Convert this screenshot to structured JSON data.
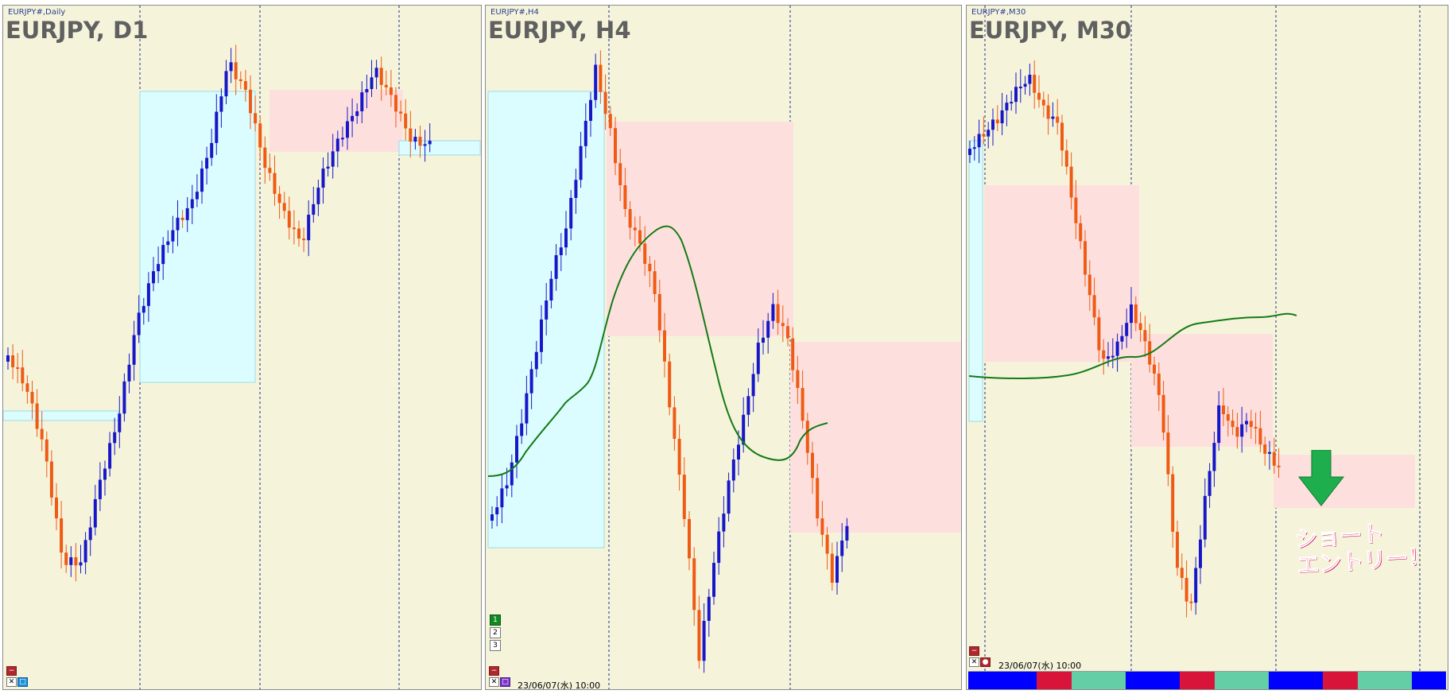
{
  "panels": [
    {
      "tiny_title": "EURJPY#,Daily",
      "big_title": "EURJPY, D1",
      "timestamp": "",
      "buttons": [
        "−",
        "✕",
        "□"
      ]
    },
    {
      "tiny_title": "EURJPY#,H4",
      "big_title": "EURJPY, H4",
      "timestamp": "23/06/07(水) 10:00",
      "buttons": [
        "−",
        "✕",
        "□"
      ],
      "side_buttons": [
        "1",
        "2",
        "3"
      ]
    },
    {
      "tiny_title": "EURJPY#,M30",
      "big_title": "EURJPY, M30",
      "timestamp": "23/06/07(水) 10:00",
      "buttons": [
        "−",
        "✕",
        "●"
      ]
    }
  ],
  "callout": {
    "line1": "ショート",
    "line2": "エントリー！"
  },
  "colors": {
    "chart_bg": "#f5f4db",
    "bull_candle": "#1717c9",
    "bear_candle": "#ef5a14",
    "zone_blue": "#dcfdff",
    "zone_red": "#fde0de",
    "moving_average": "#147a14",
    "arrow": "#1fae4e",
    "callout_text": "#ff2d77"
  },
  "icons": {
    "arrow": "down-arrow-icon"
  },
  "strip_colors": [
    "#0000ff",
    "#d8143a",
    "#64cfa6",
    "#0000ff",
    "#d8143a",
    "#64cfa6",
    "#0000ff",
    "#d8143a",
    "#64cfa6",
    "#0000ff"
  ]
}
